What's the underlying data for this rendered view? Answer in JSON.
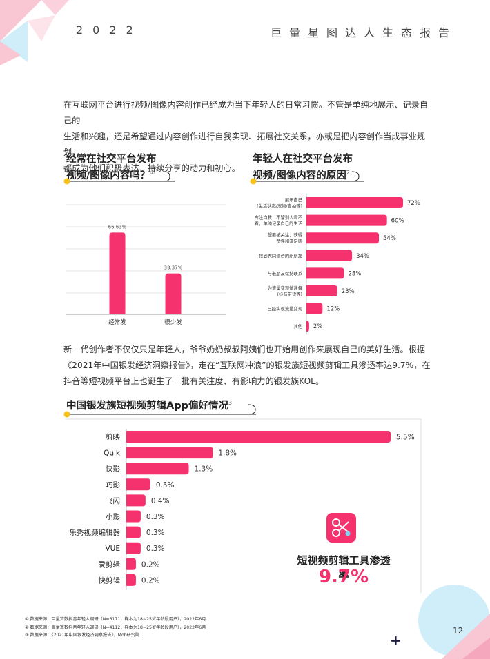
{
  "header": {
    "year": "2022",
    "title": "巨量星图达人生态报告"
  },
  "intro": {
    "lines": [
      "在互联网平台进行视频/图像内容创作已经成为当下年轻人的日常习惯。不管是单纯地展示、记录自己的",
      "生活和兴趣，还是希望通过内容创作进行自我实现、拓展社交关系，亦或是把内容创作当成事业规划，",
      "都成为他们积极表达、持续分享的动力和初心。"
    ]
  },
  "section1": {
    "title_line1": "经常在社交平台发布",
    "title_line2": "视频/图像内容吗？",
    "note": "①"
  },
  "section2": {
    "title_line1": "年轻人在社交平台发布",
    "title_line2": "视频/图像内容的原因",
    "note": "2"
  },
  "middle": {
    "lines": [
      "新一代创作者不仅仅只是年轻人，爷爷奶奶叔叔阿姨们也开始用创作来展现自己的美好生活。根据",
      "《2021年中国银发经济洞察报告》，走在“互联网冲浪”的银发族短视频剪辑工具渗透率达9.7%，在",
      "抖音等短视频平台上也诞生了一批有关注度、有影响力的银发族KOL。"
    ]
  },
  "section3": {
    "title": "中国银发族短视频剪辑App偏好情况",
    "note": "3"
  },
  "callout": {
    "label": "短视频剪辑工具渗透率",
    "value": "9.7%",
    "icon": "scissors-icon"
  },
  "footnotes": [
    "① 数据来源：巨量算数抖音年轻人调研（N=6171，样本为18~25岁年龄段用户），2022年6月",
    "② 数据来源：巨量算数抖音年轻人调研（N=4112，样本为18~25岁年龄段用户），2022年6月",
    "③ 数据来源：《2021年中国银发经济洞察报告》，Mob研究院"
  ],
  "page_number": "12",
  "colors": {
    "accent": "#f5326e",
    "yellow": "#f7c21a",
    "pink_light": "#f9c6d3",
    "blue_light": "#cfeefa"
  },
  "chart_data": [
    {
      "type": "bar",
      "categories": [
        "经常发",
        "很少发"
      ],
      "values": [
        66.63,
        33.37
      ],
      "value_labels": [
        "66.63%",
        "33.37%"
      ],
      "title": "经常在社交平台发布视频/图像内容吗？",
      "ylim": [
        0,
        100
      ],
      "grid": true
    },
    {
      "type": "bar",
      "orientation": "horizontal",
      "categories": [
        [
          "展示自己",
          "(生活状态/宠物/自拍等)"
        ],
        [
          "专注自我，不管别人看不",
          "看，单纯记录自己的生活"
        ],
        [
          "想要被关注，获得",
          "赞许和满足感"
        ],
        [
          "找到志同道合的新朋友"
        ],
        [
          "与老朋友保持联系"
        ],
        [
          "为流量变现做准备",
          "(抖音带货等)"
        ],
        [
          "已经实现流量变现"
        ],
        [
          "其他"
        ]
      ],
      "values": [
        72,
        60,
        54,
        34,
        28,
        23,
        12,
        2
      ],
      "value_labels": [
        "72%",
        "60%",
        "54%",
        "34%",
        "28%",
        "23%",
        "12%",
        "2%"
      ],
      "title": "年轻人在社交平台发布视频/图像内容的原因",
      "xlim": [
        0,
        100
      ]
    },
    {
      "type": "bar",
      "orientation": "horizontal",
      "categories": [
        "剪映",
        "Quik",
        "快影",
        "巧影",
        "飞闪",
        "小影",
        "乐秀视频编辑器",
        "VUE",
        "爱剪辑",
        "快剪辑"
      ],
      "values": [
        5.5,
        1.8,
        1.3,
        0.5,
        0.4,
        0.3,
        0.3,
        0.3,
        0.2,
        0.2
      ],
      "value_labels": [
        "5.5%",
        "1.8%",
        "1.3%",
        "0.5%",
        "0.4%",
        "0.3%",
        "0.3%",
        "0.3%",
        "0.2%",
        "0.2%"
      ],
      "title": "中国银发族短视频剪辑App偏好情况",
      "xlim": [
        0,
        5.5
      ]
    }
  ]
}
